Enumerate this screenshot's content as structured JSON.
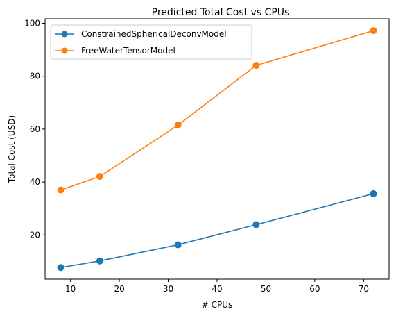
{
  "chart_data": {
    "type": "line",
    "title": "Predicted Total Cost vs CPUs",
    "xlabel": "# CPUs",
    "ylabel": "Total Cost (USD)",
    "x": [
      8,
      16,
      32,
      48,
      72
    ],
    "xlim": [
      4.8,
      75.2
    ],
    "ylim": [
      3.3,
      101.7
    ],
    "xticks": [
      10,
      20,
      30,
      40,
      50,
      60,
      70
    ],
    "yticks": [
      20,
      40,
      60,
      80,
      100
    ],
    "grid": false,
    "legend_position": "top-left",
    "series": [
      {
        "name": "ConstrainedSphericalDeconvModel",
        "color": "#1f77b4",
        "marker": "circle",
        "values": [
          7.7,
          10.2,
          16.3,
          23.9,
          35.6
        ]
      },
      {
        "name": "FreeWaterTensorModel",
        "color": "#ff7f0e",
        "marker": "circle",
        "values": [
          37.0,
          42.1,
          61.5,
          84.1,
          97.2
        ]
      }
    ]
  }
}
